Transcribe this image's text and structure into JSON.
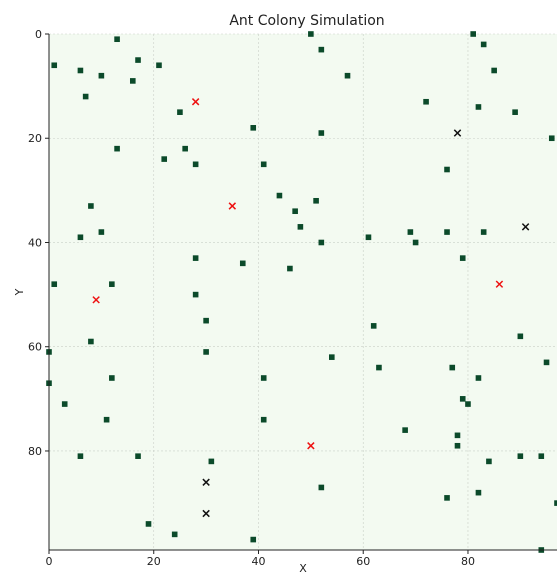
{
  "chart_data": {
    "type": "scatter",
    "title": "Ant Colony Simulation",
    "xlabel": "X",
    "ylabel": "Y",
    "xlim": [
      0,
      97
    ],
    "ylim": [
      0,
      99
    ],
    "y_inverted": true,
    "xticks": [
      0,
      20,
      40,
      60,
      80
    ],
    "yticks": [
      0,
      20,
      40,
      60,
      80
    ],
    "grid": true,
    "legend": "none",
    "background_color": "#f3faf1",
    "colors": {
      "food": "#0b4a2a",
      "ant_red": "#ee1111",
      "ant_black": "#111111"
    },
    "series": [
      {
        "marker": "square",
        "color": "#0b4a2a",
        "points": [
          [
            13,
            1
          ],
          [
            1,
            6
          ],
          [
            6,
            7
          ],
          [
            10,
            8
          ],
          [
            16,
            9
          ],
          [
            17,
            5
          ],
          [
            21,
            6
          ],
          [
            7,
            12
          ],
          [
            25,
            15
          ],
          [
            13,
            22
          ],
          [
            22,
            24
          ],
          [
            26,
            22
          ],
          [
            28,
            25
          ],
          [
            39,
            18
          ],
          [
            41,
            25
          ],
          [
            44,
            31
          ],
          [
            47,
            34
          ],
          [
            51,
            32
          ],
          [
            48,
            37
          ],
          [
            52,
            40
          ],
          [
            50,
            0
          ],
          [
            52,
            3
          ],
          [
            57,
            8
          ],
          [
            52,
            19
          ],
          [
            8,
            33
          ],
          [
            6,
            39
          ],
          [
            10,
            38
          ],
          [
            28,
            43
          ],
          [
            37,
            44
          ],
          [
            46,
            45
          ],
          [
            28,
            50
          ],
          [
            1,
            48
          ],
          [
            12,
            48
          ],
          [
            8,
            59
          ],
          [
            30,
            55
          ],
          [
            30,
            61
          ],
          [
            0,
            61
          ],
          [
            0,
            67
          ],
          [
            3,
            71
          ],
          [
            12,
            66
          ],
          [
            11,
            74
          ],
          [
            6,
            81
          ],
          [
            17,
            81
          ],
          [
            31,
            82
          ],
          [
            41,
            66
          ],
          [
            41,
            74
          ],
          [
            54,
            62
          ],
          [
            62,
            56
          ],
          [
            63,
            64
          ],
          [
            19,
            94
          ],
          [
            24,
            96
          ],
          [
            39,
            97
          ],
          [
            52,
            87
          ],
          [
            61,
            39
          ],
          [
            69,
            38
          ],
          [
            70,
            40
          ],
          [
            76,
            38
          ],
          [
            79,
            43
          ],
          [
            83,
            38
          ],
          [
            72,
            13
          ],
          [
            81,
            0
          ],
          [
            83,
            2
          ],
          [
            85,
            7
          ],
          [
            82,
            14
          ],
          [
            89,
            15
          ],
          [
            96,
            20
          ],
          [
            76,
            26
          ],
          [
            90,
            58
          ],
          [
            95,
            63
          ],
          [
            77,
            64
          ],
          [
            82,
            66
          ],
          [
            79,
            70
          ],
          [
            80,
            71
          ],
          [
            68,
            76
          ],
          [
            78,
            77
          ],
          [
            78,
            79
          ],
          [
            84,
            82
          ],
          [
            90,
            81
          ],
          [
            94,
            81
          ],
          [
            76,
            89
          ],
          [
            82,
            88
          ],
          [
            97,
            90
          ],
          [
            94,
            99
          ]
        ]
      },
      {
        "marker": "x",
        "color": "#ee1111",
        "points": [
          [
            28,
            13
          ],
          [
            35,
            33
          ],
          [
            9,
            51
          ],
          [
            86,
            48
          ],
          [
            50,
            79
          ]
        ]
      },
      {
        "marker": "x",
        "color": "#111111",
        "points": [
          [
            78,
            19
          ],
          [
            91,
            37
          ],
          [
            30,
            86
          ],
          [
            30,
            92
          ]
        ]
      }
    ]
  }
}
